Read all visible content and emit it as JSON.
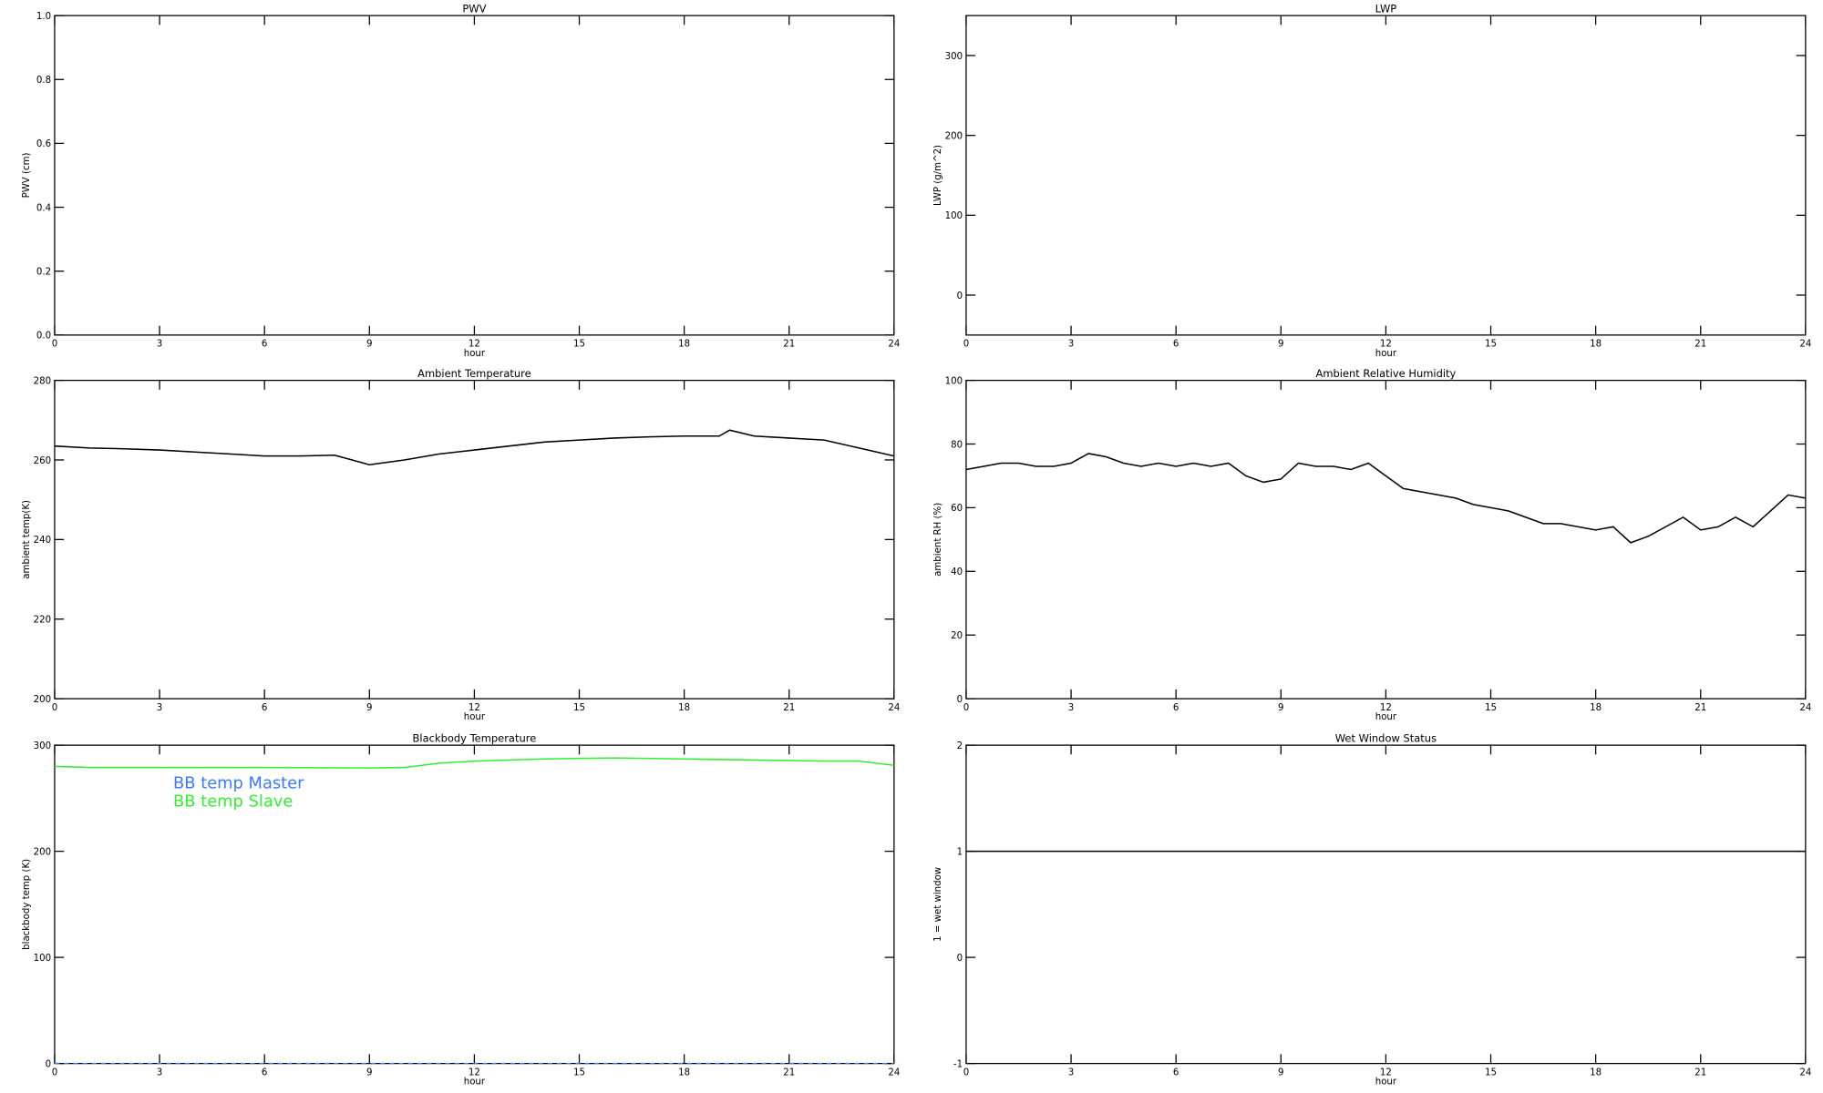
{
  "chart_data": [
    {
      "type": "line",
      "title": "PWV",
      "xlabel": "hour",
      "ylabel": "PWV (cm)",
      "xlim": [
        0,
        24
      ],
      "xticks": [
        0,
        3,
        6,
        9,
        12,
        15,
        18,
        21,
        24
      ],
      "ylim": [
        0,
        1
      ],
      "yticks": [
        {
          "value": 0,
          "label": "0.0"
        },
        0.2,
        0.4,
        0.6,
        0.8,
        {
          "value": 1,
          "label": "1.0"
        }
      ],
      "x": [],
      "series": []
    },
    {
      "type": "line",
      "title": "LWP",
      "xlabel": "hour",
      "ylabel": "LWP (g/m^2)",
      "xlim": [
        0,
        24
      ],
      "xticks": [
        0,
        3,
        6,
        9,
        12,
        15,
        18,
        21,
        24
      ],
      "ylim": [
        -50,
        350
      ],
      "yticks": [
        0,
        100,
        200,
        300
      ],
      "x": [],
      "series": []
    },
    {
      "type": "line",
      "title": "Ambient Temperature",
      "xlabel": "hour",
      "ylabel": "ambient temp(K)",
      "xlim": [
        0,
        24
      ],
      "xticks": [
        0,
        3,
        6,
        9,
        12,
        15,
        18,
        21,
        24
      ],
      "ylim": [
        200,
        280
      ],
      "yticks": [
        200,
        220,
        240,
        260,
        280
      ],
      "x": [
        0,
        1,
        2,
        3,
        4,
        5,
        6,
        7,
        8,
        9,
        10,
        11,
        12,
        13,
        14,
        15,
        16,
        17,
        18,
        19,
        19.3,
        20,
        21,
        22,
        23,
        24
      ],
      "series": [
        {
          "color": "#000000",
          "values": [
            263.5,
            263,
            262.8,
            262.5,
            262,
            261.5,
            261,
            261,
            261.2,
            258.8,
            260,
            261.5,
            262.5,
            263.5,
            264.5,
            265,
            265.5,
            265.8,
            266,
            266,
            267.5,
            266,
            265.5,
            265,
            263,
            261
          ]
        }
      ]
    },
    {
      "type": "line",
      "title": "Ambient Relative Humidity",
      "xlabel": "hour",
      "ylabel": "ambient RH (%)",
      "xlim": [
        0,
        24
      ],
      "xticks": [
        0,
        3,
        6,
        9,
        12,
        15,
        18,
        21,
        24
      ],
      "ylim": [
        0,
        100
      ],
      "yticks": [
        0,
        20,
        40,
        60,
        80,
        100
      ],
      "x": [
        0,
        0.5,
        1,
        1.5,
        2,
        2.5,
        3,
        3.5,
        4,
        4.5,
        5,
        5.5,
        6,
        6.5,
        7,
        7.5,
        8,
        8.5,
        9,
        9.5,
        10,
        10.5,
        11,
        11.5,
        12,
        12.5,
        13,
        13.5,
        14,
        14.5,
        15,
        15.5,
        16,
        16.5,
        17,
        17.5,
        18,
        18.5,
        19,
        19.5,
        20,
        20.5,
        21,
        21.5,
        22,
        22.5,
        23,
        23.5,
        24
      ],
      "series": [
        {
          "color": "#000000",
          "values": [
            72,
            73,
            74,
            74,
            73,
            73,
            74,
            77,
            76,
            74,
            73,
            74,
            73,
            74,
            73,
            74,
            70,
            68,
            69,
            74,
            73,
            73,
            72,
            74,
            70,
            66,
            65,
            64,
            63,
            61,
            60,
            59,
            57,
            55,
            55,
            54,
            53,
            54,
            49,
            51,
            54,
            57,
            53,
            54,
            57,
            54,
            59,
            64,
            63
          ]
        }
      ]
    },
    {
      "type": "line",
      "title": "Blackbody Temperature",
      "xlabel": "hour",
      "ylabel": "blackbody temp (K)",
      "xlim": [
        0,
        24
      ],
      "xticks": [
        0,
        3,
        6,
        9,
        12,
        15,
        18,
        21,
        24
      ],
      "ylim": [
        0,
        300
      ],
      "yticks": [
        0,
        100,
        200,
        300
      ],
      "x": [
        0,
        1,
        3,
        6,
        9,
        10,
        11,
        12,
        14,
        16,
        18,
        20,
        22,
        23,
        24
      ],
      "series": [
        {
          "name": "BB temp Master",
          "color": "#3b7bff",
          "dashed": true,
          "values": [
            0,
            0,
            0,
            0,
            0,
            0,
            0,
            0,
            0,
            0,
            0,
            0,
            0,
            0,
            0
          ]
        },
        {
          "name": "BB temp Slave",
          "color": "#33ee33",
          "values": [
            280,
            279,
            279,
            279,
            278.5,
            279,
            283,
            285,
            287,
            288,
            287,
            286,
            285,
            285,
            281
          ]
        }
      ]
    },
    {
      "type": "line",
      "title": "Wet Window Status",
      "xlabel": "hour",
      "ylabel": "1 = wet window",
      "xlim": [
        0,
        24
      ],
      "xticks": [
        0,
        3,
        6,
        9,
        12,
        15,
        18,
        21,
        24
      ],
      "ylim": [
        -1,
        2
      ],
      "yticks": [
        -1,
        0,
        1,
        2
      ],
      "x": [
        0,
        24
      ],
      "series": [
        {
          "color": "#000000",
          "values": [
            1,
            1
          ]
        }
      ]
    }
  ]
}
